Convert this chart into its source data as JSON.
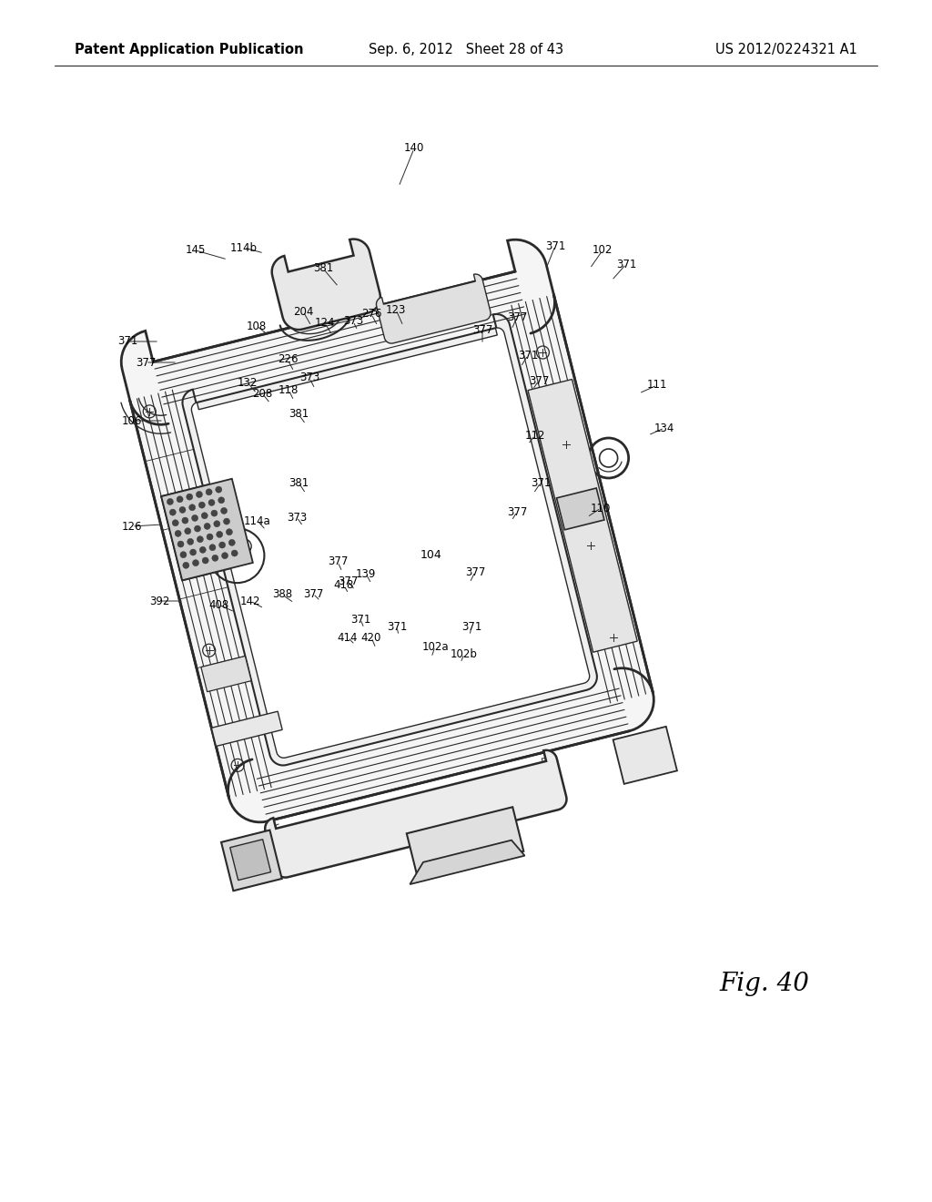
{
  "background_color": "#ffffff",
  "header_left": "Patent Application Publication",
  "header_center": "Sep. 6, 2012   Sheet 28 of 43",
  "header_right": "US 2012/0224321 A1",
  "fig_label": "Fig. 40",
  "line_color": "#2a2a2a",
  "text_color": "#000000",
  "header_fontsize": 10.5,
  "label_fontsize": 8.5,
  "fig_fontsize": 20
}
